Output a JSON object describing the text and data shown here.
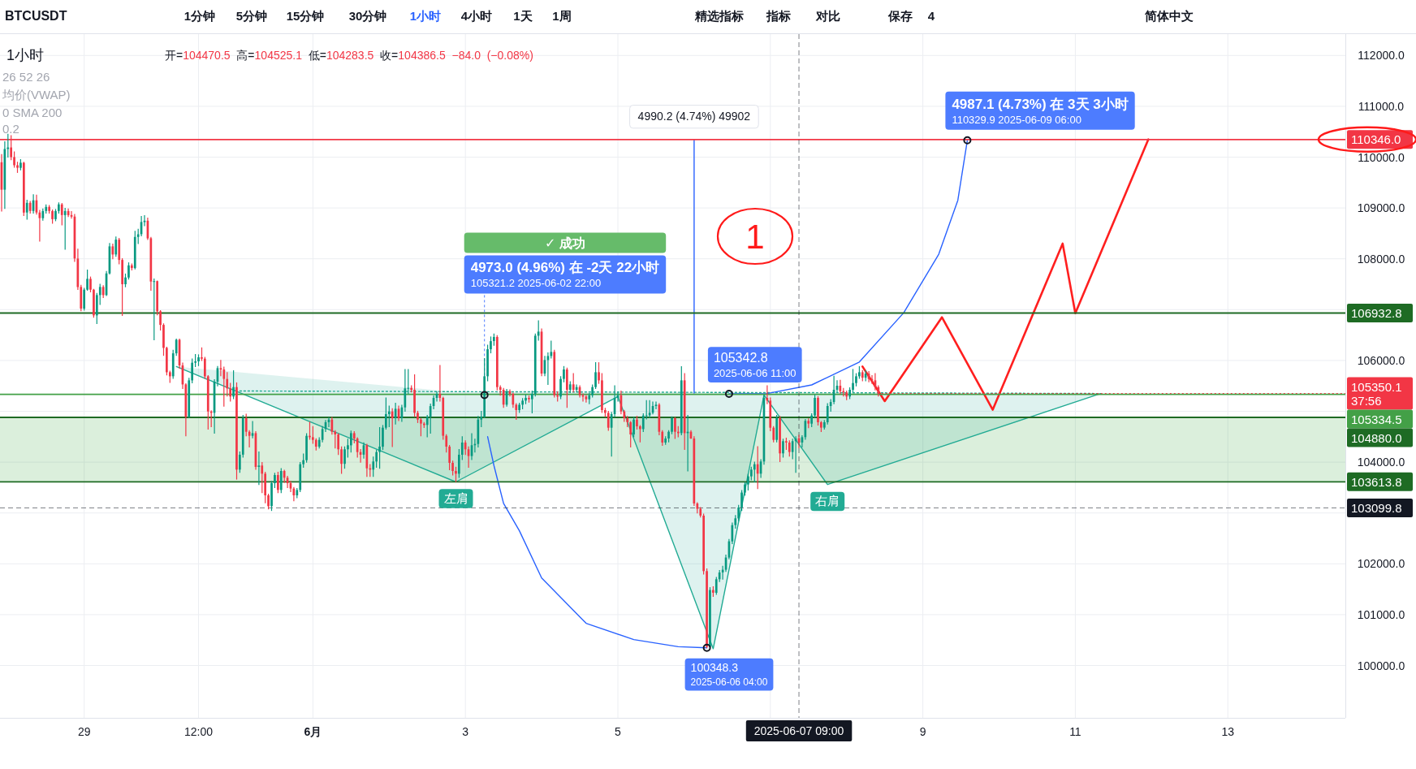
{
  "chart_data": {
    "type": "candlestick",
    "title": "BTCUSDT",
    "subtitle": "1小时",
    "xlim": [
      "2025-05-27T21:30",
      "2025-06-14T13:00"
    ],
    "ylim": [
      98970,
      112420
    ],
    "xticks": [
      {
        "value": "2025-05-29",
        "label": "29"
      },
      {
        "value": "2025-05-30T12:00",
        "label": "12:00"
      },
      {
        "value": "2025-06-01",
        "label": "6月"
      },
      {
        "value": "2025-06-03",
        "label": "3"
      },
      {
        "value": "2025-06-05",
        "label": "5"
      },
      {
        "value": "2025-06-07",
        "label": null
      },
      {
        "value": "2025-06-09",
        "label": "9"
      },
      {
        "value": "2025-06-11",
        "label": "11"
      },
      {
        "value": "2025-06-13",
        "label": "13"
      }
    ],
    "yticks": [
      {
        "value": 100000,
        "label": "100000.0"
      },
      {
        "value": 101000,
        "label": "101000.0"
      },
      {
        "value": 102000,
        "label": "102000.0"
      },
      {
        "value": 103000,
        "label": null
      },
      {
        "value": 104000,
        "label": "104000.0"
      },
      {
        "value": 105000,
        "label": null
      },
      {
        "value": 106000,
        "label": "106000.0"
      },
      {
        "value": 107000,
        "label": null
      },
      {
        "value": 108000,
        "label": "108000.0"
      },
      {
        "value": 109000,
        "label": "109000.0"
      },
      {
        "value": 110000,
        "label": "110000.0"
      },
      {
        "value": 111000,
        "label": "111000.0"
      },
      {
        "value": 112000,
        "label": "112000.0"
      }
    ],
    "grid": true,
    "x": [
      "2025-05-27T22:00",
      "2025-05-27T23:00",
      "2025-05-28T00:00",
      "2025-05-28T01:00",
      "2025-05-28T02:00",
      "2025-05-28T03:00",
      "2025-05-28T04:00",
      "2025-05-28T05:00",
      "2025-05-28T06:00",
      "2025-05-28T07:00",
      "2025-05-28T08:00",
      "2025-05-28T09:00",
      "2025-05-28T10:00",
      "2025-05-28T11:00",
      "2025-05-28T12:00",
      "2025-05-28T13:00",
      "2025-05-28T14:00",
      "2025-05-28T15:00",
      "2025-05-28T16:00",
      "2025-05-28T17:00",
      "2025-05-28T18:00",
      "2025-05-28T19:00",
      "2025-05-28T20:00",
      "2025-05-28T21:00",
      "2025-05-28T22:00",
      "2025-05-28T23:00",
      "2025-05-29T00:00",
      "2025-05-29T01:00",
      "2025-05-29T02:00",
      "2025-05-29T03:00",
      "2025-05-29T04:00",
      "2025-05-29T05:00",
      "2025-05-29T06:00",
      "2025-05-29T07:00",
      "2025-05-29T08:00",
      "2025-05-29T09:00",
      "2025-05-29T10:00",
      "2025-05-29T11:00",
      "2025-05-29T12:00",
      "2025-05-29T13:00",
      "2025-05-29T14:00",
      "2025-05-29T15:00",
      "2025-05-29T16:00",
      "2025-05-29T17:00",
      "2025-05-29T18:00",
      "2025-05-29T19:00",
      "2025-05-29T20:00",
      "2025-05-29T21:00",
      "2025-05-29T22:00",
      "2025-05-29T23:00",
      "2025-05-30T00:00",
      "2025-05-30T01:00",
      "2025-05-30T02:00",
      "2025-05-30T03:00",
      "2025-05-30T04:00",
      "2025-05-30T05:00",
      "2025-05-30T06:00",
      "2025-05-30T07:00",
      "2025-05-30T08:00",
      "2025-05-30T09:00",
      "2025-05-30T10:00",
      "2025-05-30T11:00",
      "2025-05-30T12:00",
      "2025-05-30T13:00",
      "2025-05-30T14:00",
      "2025-05-30T15:00",
      "2025-05-30T16:00",
      "2025-05-30T17:00",
      "2025-05-30T18:00",
      "2025-05-30T19:00",
      "2025-05-30T20:00",
      "2025-05-30T21:00",
      "2025-05-30T22:00",
      "2025-05-30T23:00",
      "2025-05-31T00:00",
      "2025-05-31T01:00",
      "2025-05-31T02:00",
      "2025-05-31T03:00",
      "2025-05-31T04:00",
      "2025-05-31T05:00",
      "2025-05-31T06:00",
      "2025-05-31T07:00",
      "2025-05-31T08:00",
      "2025-05-31T09:00",
      "2025-05-31T10:00",
      "2025-05-31T11:00",
      "2025-05-31T12:00",
      "2025-05-31T13:00",
      "2025-05-31T14:00",
      "2025-05-31T15:00",
      "2025-05-31T16:00",
      "2025-05-31T17:00",
      "2025-05-31T18:00",
      "2025-05-31T19:00",
      "2025-05-31T20:00",
      "2025-05-31T21:00",
      "2025-05-31T22:00",
      "2025-05-31T23:00",
      "2025-06-01T00:00",
      "2025-06-01T01:00",
      "2025-06-01T02:00",
      "2025-06-01T03:00",
      "2025-06-01T04:00",
      "2025-06-01T05:00",
      "2025-06-01T06:00",
      "2025-06-01T07:00",
      "2025-06-01T08:00",
      "2025-06-01T09:00",
      "2025-06-01T10:00",
      "2025-06-01T11:00",
      "2025-06-01T12:00",
      "2025-06-01T13:00",
      "2025-06-01T14:00",
      "2025-06-01T15:00",
      "2025-06-01T16:00",
      "2025-06-01T17:00",
      "2025-06-01T18:00",
      "2025-06-01T19:00",
      "2025-06-01T20:00",
      "2025-06-01T21:00",
      "2025-06-01T22:00",
      "2025-06-01T23:00",
      "2025-06-02T00:00",
      "2025-06-02T01:00",
      "2025-06-02T02:00",
      "2025-06-02T03:00",
      "2025-06-02T04:00",
      "2025-06-02T05:00",
      "2025-06-02T06:00",
      "2025-06-02T07:00",
      "2025-06-02T08:00",
      "2025-06-02T09:00",
      "2025-06-02T10:00",
      "2025-06-02T11:00",
      "2025-06-02T12:00",
      "2025-06-02T13:00",
      "2025-06-02T14:00",
      "2025-06-02T15:00",
      "2025-06-02T16:00",
      "2025-06-02T17:00",
      "2025-06-02T18:00",
      "2025-06-02T19:00",
      "2025-06-02T20:00",
      "2025-06-02T21:00",
      "2025-06-02T22:00",
      "2025-06-02T23:00",
      "2025-06-03T00:00",
      "2025-06-03T01:00",
      "2025-06-03T02:00",
      "2025-06-03T03:00",
      "2025-06-03T04:00",
      "2025-06-03T05:00",
      "2025-06-03T06:00",
      "2025-06-03T07:00",
      "2025-06-03T08:00",
      "2025-06-03T09:00",
      "2025-06-03T10:00",
      "2025-06-03T11:00",
      "2025-06-03T12:00",
      "2025-06-03T13:00",
      "2025-06-03T14:00",
      "2025-06-03T15:00",
      "2025-06-03T16:00",
      "2025-06-03T17:00",
      "2025-06-03T18:00",
      "2025-06-03T19:00",
      "2025-06-03T20:00",
      "2025-06-03T21:00",
      "2025-06-03T22:00",
      "2025-06-03T23:00",
      "2025-06-04T00:00",
      "2025-06-04T01:00",
      "2025-06-04T02:00",
      "2025-06-04T03:00",
      "2025-06-04T04:00",
      "2025-06-04T05:00",
      "2025-06-04T06:00",
      "2025-06-04T07:00",
      "2025-06-04T08:00",
      "2025-06-04T09:00",
      "2025-06-04T10:00",
      "2025-06-04T11:00",
      "2025-06-04T12:00",
      "2025-06-04T13:00",
      "2025-06-04T14:00",
      "2025-06-04T15:00",
      "2025-06-04T16:00",
      "2025-06-04T17:00",
      "2025-06-04T18:00",
      "2025-06-04T19:00",
      "2025-06-04T20:00",
      "2025-06-04T21:00",
      "2025-06-04T22:00",
      "2025-06-04T23:00",
      "2025-06-05T00:00",
      "2025-06-05T01:00",
      "2025-06-05T02:00",
      "2025-06-05T03:00",
      "2025-06-05T04:00",
      "2025-06-05T05:00",
      "2025-06-05T06:00",
      "2025-06-05T07:00",
      "2025-06-05T08:00",
      "2025-06-05T09:00",
      "2025-06-05T10:00",
      "2025-06-05T11:00",
      "2025-06-05T12:00",
      "2025-06-05T13:00",
      "2025-06-05T14:00",
      "2025-06-05T15:00",
      "2025-06-05T16:00",
      "2025-06-05T17:00",
      "2025-06-05T18:00",
      "2025-06-05T19:00",
      "2025-06-05T20:00",
      "2025-06-05T21:00",
      "2025-06-05T22:00",
      "2025-06-05T23:00",
      "2025-06-06T00:00",
      "2025-06-06T01:00",
      "2025-06-06T02:00",
      "2025-06-06T03:00",
      "2025-06-06T04:00",
      "2025-06-06T05:00",
      "2025-06-06T06:00",
      "2025-06-06T07:00",
      "2025-06-06T08:00",
      "2025-06-06T09:00",
      "2025-06-06T10:00",
      "2025-06-06T11:00",
      "2025-06-06T12:00",
      "2025-06-06T13:00",
      "2025-06-06T14:00",
      "2025-06-06T15:00",
      "2025-06-06T16:00",
      "2025-06-06T17:00",
      "2025-06-06T18:00",
      "2025-06-06T19:00",
      "2025-06-06T20:00",
      "2025-06-06T21:00",
      "2025-06-06T22:00",
      "2025-06-06T23:00",
      "2025-06-07T00:00",
      "2025-06-07T01:00",
      "2025-06-07T02:00",
      "2025-06-07T03:00",
      "2025-06-07T04:00",
      "2025-06-07T05:00",
      "2025-06-07T06:00",
      "2025-06-07T07:00",
      "2025-06-07T08:00",
      "2025-06-07T09:00",
      "2025-06-07T10:00",
      "2025-06-07T11:00",
      "2025-06-07T12:00",
      "2025-06-07T13:00",
      "2025-06-07T14:00",
      "2025-06-07T15:00",
      "2025-06-07T16:00",
      "2025-06-07T17:00",
      "2025-06-07T18:00",
      "2025-06-07T19:00",
      "2025-06-07T20:00",
      "2025-06-07T21:00",
      "2025-06-07T22:00",
      "2025-06-07T23:00",
      "2025-06-08T00:00",
      "2025-06-08T01:00",
      "2025-06-08T02:00",
      "2025-06-08T03:00",
      "2025-06-08T04:00",
      "2025-06-08T05:00",
      "2025-06-08T06:00",
      "2025-06-08T07:00",
      "2025-06-08T08:00",
      "2025-06-08T09:00",
      "2025-06-08T10:00"
    ],
    "ohlc": [
      [
        109900,
        110050,
        108940,
        109360
      ],
      [
        109360,
        110300,
        108990,
        110160
      ],
      [
        110160,
        110450,
        110000,
        110190
      ],
      [
        110190,
        110420,
        109950,
        110000
      ],
      [
        110000,
        110100,
        109800,
        109840
      ],
      [
        109840,
        109900,
        109700,
        109790
      ],
      [
        109790,
        109950,
        109750,
        109890
      ],
      [
        109890,
        109900,
        108850,
        108910
      ],
      [
        108910,
        109150,
        108780,
        109100
      ],
      [
        109100,
        109130,
        108900,
        108940
      ],
      [
        108940,
        109260,
        108900,
        109150
      ],
      [
        109150,
        109250,
        108880,
        108910
      ],
      [
        108910,
        108950,
        108350,
        108800
      ],
      [
        108800,
        108980,
        108760,
        108940
      ],
      [
        108940,
        109060,
        108900,
        109020
      ],
      [
        109020,
        109050,
        108900,
        108940
      ],
      [
        108940,
        108960,
        108700,
        108780
      ],
      [
        108780,
        108970,
        108750,
        108940
      ],
      [
        108940,
        109100,
        108900,
        109070
      ],
      [
        109070,
        109090,
        108670,
        108860
      ],
      [
        108860,
        108990,
        108190,
        108940
      ],
      [
        108940,
        108980,
        108830,
        108860
      ],
      [
        108860,
        108930,
        108800,
        108830
      ],
      [
        108830,
        108870,
        107950,
        108005
      ],
      [
        108005,
        108190,
        107400,
        107445
      ],
      [
        107445,
        107480,
        106980,
        107020
      ],
      [
        107020,
        107420,
        106990,
        107393
      ],
      [
        107393,
        107780,
        107380,
        107605
      ],
      [
        107605,
        107640,
        107350,
        107393
      ],
      [
        107393,
        107400,
        106850,
        106887
      ],
      [
        106887,
        107320,
        106727,
        107286
      ],
      [
        107286,
        107500,
        107100,
        107446
      ],
      [
        107446,
        107470,
        107240,
        107286
      ],
      [
        107286,
        107750,
        107280,
        107712
      ],
      [
        107712,
        108300,
        107700,
        108244
      ],
      [
        108244,
        108290,
        108000,
        108084
      ],
      [
        108084,
        108430,
        108050,
        108377
      ],
      [
        108377,
        108400,
        107900,
        107978
      ],
      [
        107978,
        108000,
        106886,
        107500
      ],
      [
        107500,
        107700,
        107450,
        107632
      ],
      [
        107632,
        107920,
        107600,
        107871
      ],
      [
        107871,
        107900,
        107780,
        107818
      ],
      [
        107818,
        108540,
        107800,
        108430
      ],
      [
        108430,
        108580,
        108300,
        108483
      ],
      [
        108483,
        108830,
        108450,
        108723
      ],
      [
        108723,
        108850,
        108650,
        108750
      ],
      [
        108750,
        108800,
        108380,
        108404
      ],
      [
        108404,
        108420,
        107380,
        107552
      ],
      [
        107552,
        107600,
        106407,
        107560
      ],
      [
        107560,
        107560,
        106900,
        106966
      ],
      [
        106966,
        106980,
        106600,
        106700
      ],
      [
        106700,
        106720,
        106100,
        106248
      ],
      [
        106248,
        106260,
        105716,
        105769
      ],
      [
        105769,
        105790,
        105570,
        105689
      ],
      [
        105689,
        106200,
        105650,
        106141
      ],
      [
        106141,
        106420,
        106100,
        106407
      ],
      [
        106407,
        106420,
        105850,
        105902
      ],
      [
        105902,
        105950,
        105450,
        105529
      ],
      [
        105529,
        105540,
        104518,
        104890
      ],
      [
        104890,
        105650,
        104880,
        105609
      ],
      [
        105609,
        106030,
        105560,
        105955
      ],
      [
        105955,
        106115,
        105880,
        105982
      ],
      [
        105982,
        106110,
        105900,
        106062
      ],
      [
        106062,
        106248,
        106000,
        106035
      ],
      [
        106035,
        106060,
        105650,
        105689
      ],
      [
        105689,
        105700,
        104650,
        104997
      ],
      [
        104997,
        105010,
        104700,
        104970
      ],
      [
        104970,
        105620,
        104570,
        105583
      ],
      [
        105583,
        105880,
        105500,
        105849
      ],
      [
        105849,
        106000,
        105700,
        105822
      ],
      [
        105822,
        105870,
        105100,
        105636
      ],
      [
        105636,
        105760,
        105300,
        105450
      ],
      [
        105450,
        105550,
        105200,
        105290
      ],
      [
        105290,
        105795,
        105250,
        105476
      ],
      [
        105476,
        105560,
        103666,
        103853
      ],
      [
        103853,
        104200,
        103800,
        104146
      ],
      [
        104146,
        104920,
        104100,
        104864
      ],
      [
        104864,
        104944,
        104520,
        104598
      ],
      [
        104598,
        104620,
        104300,
        104518
      ],
      [
        104518,
        104800,
        104480,
        104571
      ],
      [
        104571,
        104600,
        103860,
        103906
      ],
      [
        103906,
        104200,
        103560,
        103933
      ],
      [
        103933,
        103990,
        103400,
        103773
      ],
      [
        103773,
        103800,
        103200,
        103347
      ],
      [
        103347,
        103370,
        103080,
        103134
      ],
      [
        103134,
        103620,
        103050,
        103586
      ],
      [
        103586,
        103780,
        103500,
        103746
      ],
      [
        103746,
        103800,
        103400,
        103453
      ],
      [
        103453,
        103870,
        103400,
        103826
      ],
      [
        103826,
        103840,
        103600,
        103693
      ],
      [
        103693,
        103720,
        103500,
        103586
      ],
      [
        103586,
        103620,
        103420,
        103480
      ],
      [
        103480,
        103500,
        103240,
        103347
      ],
      [
        103347,
        103480,
        103300,
        103453
      ],
      [
        103453,
        103990,
        103420,
        103959
      ],
      [
        103959,
        104160,
        103900,
        104039
      ],
      [
        104039,
        104560,
        104000,
        104518
      ],
      [
        104518,
        104784,
        104450,
        104491
      ],
      [
        104491,
        104700,
        104370,
        104438
      ],
      [
        104438,
        104460,
        104240,
        104305
      ],
      [
        104305,
        104480,
        104280,
        104438
      ],
      [
        104438,
        104700,
        104400,
        104651
      ],
      [
        104651,
        104820,
        104600,
        104784
      ],
      [
        104784,
        104870,
        104700,
        104837
      ],
      [
        104837,
        104880,
        104550,
        104598
      ],
      [
        104598,
        104620,
        104279,
        104545
      ],
      [
        104545,
        104560,
        104150,
        104252
      ],
      [
        104252,
        104300,
        103780,
        103966
      ],
      [
        103966,
        104300,
        103880,
        104252
      ],
      [
        104252,
        104450,
        104100,
        104332
      ],
      [
        104332,
        104610,
        104200,
        104571
      ],
      [
        104571,
        104600,
        104380,
        104465
      ],
      [
        104465,
        104480,
        104100,
        104199
      ],
      [
        104199,
        104250,
        104000,
        104146
      ],
      [
        104146,
        104380,
        104080,
        104332
      ],
      [
        104332,
        104350,
        103720,
        103879
      ],
      [
        103879,
        103950,
        103720,
        103853
      ],
      [
        103853,
        104100,
        103720,
        104013
      ],
      [
        104013,
        104230,
        103900,
        104199
      ],
      [
        104199,
        104678,
        103880,
        104305
      ],
      [
        104305,
        104720,
        104250,
        104678
      ],
      [
        104678,
        105263,
        104650,
        104944
      ],
      [
        104944,
        105100,
        104700,
        104997
      ],
      [
        104997,
        105050,
        104305,
        104864
      ],
      [
        104864,
        105160,
        104750,
        105050
      ],
      [
        105050,
        105100,
        104820,
        104864
      ],
      [
        104864,
        105120,
        104800,
        105077
      ],
      [
        105077,
        105822,
        105000,
        105450
      ],
      [
        105450,
        105820,
        105350,
        105460
      ],
      [
        105460,
        105500,
        105380,
        105423
      ],
      [
        105423,
        105716,
        104900,
        104970
      ],
      [
        104970,
        105000,
        104780,
        104837
      ],
      [
        104837,
        104860,
        104518,
        104758
      ],
      [
        104758,
        104780,
        104680,
        104731
      ],
      [
        104731,
        104920,
        104500,
        104891
      ],
      [
        104891,
        105140,
        104570,
        105103
      ],
      [
        105103,
        105300,
        105050,
        105263
      ],
      [
        105263,
        105380,
        105200,
        105343
      ],
      [
        105343,
        105902,
        105200,
        105263
      ],
      [
        105263,
        105280,
        104450,
        104518
      ],
      [
        104518,
        104540,
        104200,
        104305
      ],
      [
        104305,
        104330,
        103850,
        103986
      ],
      [
        103986,
        104020,
        103750,
        103826
      ],
      [
        103826,
        103900,
        103613.8,
        103773
      ],
      [
        103773,
        104250,
        103700,
        104146
      ],
      [
        104146,
        104500,
        104050,
        104385
      ],
      [
        104385,
        104420,
        104150,
        104252
      ],
      [
        104252,
        104300,
        103900,
        104119
      ],
      [
        104119,
        104560,
        104050,
        104332
      ],
      [
        104332,
        104450,
        104200,
        104358
      ],
      [
        104358,
        104900,
        104300,
        104837
      ],
      [
        104837,
        105000,
        104700,
        104891
      ],
      [
        104891,
        106035,
        104880,
        105689
      ],
      [
        105689,
        106300,
        105600,
        106221
      ],
      [
        106221,
        106461,
        106150,
        106381
      ],
      [
        106381,
        106520,
        106300,
        106461
      ],
      [
        106461,
        106488,
        105420,
        105476
      ],
      [
        105476,
        105500,
        105316,
        105423
      ],
      [
        105423,
        105450,
        105077,
        105130
      ],
      [
        105130,
        105430,
        105100,
        105396
      ],
      [
        105396,
        105420,
        105300,
        105343
      ],
      [
        105343,
        105360,
        105077,
        105130
      ],
      [
        105130,
        105150,
        104840,
        105024
      ],
      [
        105024,
        105160,
        104980,
        105130
      ],
      [
        105130,
        105250,
        105050,
        105210
      ],
      [
        105210,
        105320,
        105150,
        105263
      ],
      [
        105263,
        105300,
        105180,
        105237
      ],
      [
        105237,
        105400,
        104970,
        105343
      ],
      [
        105343,
        106520,
        105300,
        106487
      ],
      [
        106487,
        106780,
        106400,
        106567
      ],
      [
        106567,
        106620,
        105700,
        105742
      ],
      [
        105742,
        106080,
        105700,
        106008
      ],
      [
        106008,
        106150,
        105530,
        106088
      ],
      [
        106088,
        106380,
        106050,
        106168
      ],
      [
        106168,
        106200,
        105280,
        105317
      ],
      [
        105317,
        105380,
        105200,
        105290
      ],
      [
        105290,
        105680,
        105250,
        105636
      ],
      [
        105636,
        105880,
        105580,
        105822
      ],
      [
        105822,
        105850,
        105077,
        105423
      ],
      [
        105423,
        105580,
        105370,
        105530
      ],
      [
        105530,
        105740,
        105380,
        105423
      ],
      [
        105423,
        105520,
        105380,
        105476
      ],
      [
        105476,
        105500,
        105280,
        105317
      ],
      [
        105317,
        105340,
        105200,
        105290
      ],
      [
        105290,
        105310,
        105180,
        105237
      ],
      [
        105237,
        105350,
        105150,
        105317
      ],
      [
        105317,
        105520,
        105280,
        105476
      ],
      [
        105476,
        105955,
        105450,
        105769
      ],
      [
        105769,
        105955,
        105550,
        105609
      ],
      [
        105609,
        105740,
        104980,
        105024
      ],
      [
        105024,
        105060,
        104900,
        104970
      ],
      [
        104970,
        105000,
        104625,
        104678
      ],
      [
        104678,
        104980,
        104120,
        104944
      ],
      [
        104944,
        105500,
        104900,
        105263
      ],
      [
        105263,
        105380,
        105200,
        105317
      ],
      [
        105317,
        105400,
        104950,
        104997
      ],
      [
        104997,
        105020,
        104800,
        104864
      ],
      [
        104864,
        104900,
        104700,
        104784
      ],
      [
        104784,
        104800,
        104300,
        104545
      ],
      [
        104545,
        104880,
        104500,
        104838
      ],
      [
        104838,
        104900,
        104650,
        104705
      ],
      [
        104705,
        104720,
        104400,
        104651
      ],
      [
        104651,
        104950,
        104600,
        104917
      ],
      [
        104917,
        105210,
        104850,
        104920
      ],
      [
        104920,
        105210,
        104880,
        104971
      ],
      [
        104971,
        105180,
        104950,
        105104
      ],
      [
        105104,
        105180,
        105050,
        105130
      ],
      [
        105130,
        105150,
        104540,
        104598
      ],
      [
        104598,
        104620,
        104330,
        104385
      ],
      [
        104385,
        104500,
        104350,
        104465
      ],
      [
        104465,
        104620,
        104400,
        104598
      ],
      [
        104598,
        104890,
        104560,
        104864
      ],
      [
        104864,
        104880,
        104465,
        104598
      ],
      [
        104598,
        104700,
        104500,
        104571
      ],
      [
        104571,
        105875,
        104540,
        105609
      ],
      [
        105609,
        105742,
        104252,
        104571
      ],
      [
        104571,
        104918,
        103826,
        104598
      ],
      [
        104598,
        104620,
        104465,
        104465
      ],
      [
        104465,
        104500,
        103150,
        103187
      ],
      [
        103187,
        103200,
        103000,
        103081
      ],
      [
        103081,
        103108,
        102920,
        102948
      ],
      [
        102948,
        102980,
        101800,
        101857
      ],
      [
        101857,
        101900,
        100348.3,
        100366
      ],
      [
        100366,
        101530,
        100360,
        101484
      ],
      [
        101484,
        101550,
        101360,
        101431
      ],
      [
        101431,
        101730,
        101400,
        101697
      ],
      [
        101697,
        101870,
        101650,
        101830
      ],
      [
        101830,
        101950,
        101700,
        101883
      ],
      [
        101883,
        102170,
        101850,
        102123
      ],
      [
        102123,
        102480,
        102100,
        102442
      ],
      [
        102442,
        102800,
        102400,
        102761
      ],
      [
        102761,
        102950,
        102700,
        102894
      ],
      [
        102894,
        103150,
        102850,
        103108
      ],
      [
        103108,
        103440,
        103050,
        103401
      ],
      [
        103401,
        103600,
        103350,
        103561
      ],
      [
        103561,
        103760,
        103450,
        103720
      ],
      [
        103720,
        103900,
        103650,
        103853
      ],
      [
        103853,
        104000,
        103610,
        103959
      ],
      [
        103959,
        104305,
        103480,
        103773
      ],
      [
        103773,
        104050,
        103700,
        104013
      ],
      [
        104013,
        105316,
        103960,
        105263
      ],
      [
        105263,
        105500,
        105150,
        105210
      ],
      [
        105210,
        105263,
        104620,
        104678
      ],
      [
        104678,
        104700,
        104400,
        104438
      ],
      [
        104438,
        104917,
        104400,
        104864
      ],
      [
        104864,
        104900,
        104013,
        104172
      ],
      [
        104172,
        104450,
        104100,
        104412
      ],
      [
        104412,
        104470,
        104250,
        104385
      ],
      [
        104385,
        104420,
        104120,
        104199
      ],
      [
        104199,
        104450,
        104066,
        104412
      ],
      [
        104412,
        104500,
        103800,
        104465
      ],
      [
        104470.5,
        104525.1,
        104283.5,
        104386.5
      ],
      [
        104386.5,
        104520,
        104300,
        104491
      ],
      [
        104491,
        104838,
        104450,
        104811
      ],
      [
        104811,
        104850,
        104678,
        104758
      ],
      [
        104758,
        104950,
        104700,
        104917
      ],
      [
        104917,
        105320,
        104880,
        105263
      ],
      [
        105263,
        105290,
        104730,
        104784
      ],
      [
        104784,
        104800,
        104600,
        104678
      ],
      [
        104678,
        104820,
        104650,
        104784
      ],
      [
        104784,
        105150,
        104750,
        105104
      ],
      [
        105104,
        105230,
        105000,
        105183
      ],
      [
        105183,
        105690,
        105150,
        105423
      ],
      [
        105423,
        105600,
        105380,
        105503
      ],
      [
        105503,
        105610,
        105350,
        105396
      ],
      [
        105396,
        105450,
        105300,
        105370
      ],
      [
        105370,
        105400,
        105230,
        105290
      ],
      [
        105290,
        105460,
        105250,
        105423
      ],
      [
        105423,
        105822,
        105380,
        105556
      ],
      [
        105556,
        105740,
        105500,
        105689
      ],
      [
        105689,
        105875,
        105650,
        105769
      ],
      [
        105769,
        105800,
        105600,
        105662
      ],
      [
        105662,
        105800,
        105600,
        105742
      ],
      [
        105742,
        105780,
        105580,
        105636
      ],
      [
        105636,
        105700,
        105550,
        105609
      ],
      [
        105609,
        105742,
        105420,
        105476
      ],
      [
        105476,
        105500,
        105300,
        105350.1
      ]
    ],
    "series": [
      {
        "type": "line",
        "color": "#22ab94",
        "x": [
          "2025-05-30T05:00",
          "2025-06-02T21:00",
          "2025-06-05T00:00",
          "2025-06-06T06:00",
          "2025-06-06T22:00",
          "2025-06-07T18:00",
          "2025-06-11T08:00"
        ],
        "values": [
          105880,
          103610,
          105290,
          100330,
          105320,
          103560,
          105350
        ],
        "lower": [
          105880,
          103610,
          105290,
          100330,
          105320,
          103560,
          105350
        ],
        "upper": [
          105880,
          105380,
          105370,
          105370,
          105360,
          105360,
          105350
        ]
      },
      {
        "type": "line",
        "color": "#22ab94",
        "line_style": "dotted",
        "x": [
          "2025-05-31T01:00",
          "2025-06-11T08:00"
        ],
        "values": [
          105400,
          105350
        ]
      },
      {
        "type": "line",
        "color": "#2962ff",
        "x": [
          "2025-06-03T07:00",
          "2025-06-03T09:00",
          "2025-06-03T12:00",
          "2025-06-03T17:00",
          "2025-06-04T00:00",
          "2025-06-04T14:00",
          "2025-06-05T05:00",
          "2025-06-05T19:00",
          "2025-06-06T04:00"
        ],
        "values": [
          104500,
          103930,
          103190,
          102650,
          101720,
          100830,
          100510,
          100370,
          100348.3
        ]
      },
      {
        "type": "line",
        "color": "#2962ff",
        "x": [
          "2025-06-06T11:00",
          "2025-06-06T23:00",
          "2025-06-07T13:00",
          "2025-06-08T04:00",
          "2025-06-08T18:00",
          "2025-06-09T05:00",
          "2025-06-09T11:00",
          "2025-06-09T14:00"
        ],
        "values": [
          105342.8,
          105350,
          105520,
          105970,
          106940,
          108090,
          109150,
          110329.9
        ]
      },
      {
        "type": "line",
        "color": "#2962ff",
        "x": [
          "2025-06-06T00:00",
          "2025-06-06T00:00"
        ],
        "values": [
          105360,
          110346
        ]
      },
      {
        "type": "line",
        "color": "#ff1f1f",
        "x": [
          "2025-06-08T05:00",
          "2025-06-08T12:00",
          "2025-06-09T06:00",
          "2025-06-09T22:00",
          "2025-06-10T20:00",
          "2025-06-11T00:00",
          "2025-06-11T23:00"
        ],
        "values": [
          105880,
          105200,
          106850,
          105030,
          108300,
          106930,
          110350
        ]
      }
    ],
    "bands": [
      {
        "axis": "y",
        "from": 103613.8,
        "to": 104880.0,
        "color": "#4caf50"
      }
    ],
    "ref_lines": [
      {
        "axis": "y",
        "value": 110346.0,
        "label": "110346.0",
        "color": "#f23645"
      },
      {
        "axis": "y",
        "value": 106932.8,
        "label": "106932.8",
        "color": "#1e6b24"
      },
      {
        "axis": "y",
        "value": 105334.5,
        "label": "105334.5",
        "color": "#43a047"
      },
      {
        "axis": "y",
        "value": 104880.0,
        "label": "104880.0",
        "color": "#1e6b24"
      },
      {
        "axis": "y",
        "value": 103613.8,
        "label": "103613.8",
        "color": "#1e6b24"
      },
      {
        "axis": "y",
        "value": 103099.8,
        "label": "103099.8",
        "color": "#131722",
        "line_style": "dashed"
      },
      {
        "axis": "x",
        "value": "2025-06-07T09:00",
        "label": "2025-06-07 09:00",
        "color": "#131722",
        "line_style": "dashed"
      }
    ],
    "annotations": [
      "1分钟",
      "5分钟",
      "15分钟",
      "30分钟",
      "1小时",
      "4小时",
      "1天",
      "1周",
      "精选指标",
      "指标",
      "对比",
      "保存",
      "4",
      "简体中文",
      "开=104470.5 高=104525.1 低=104283.5 收=104386.5 −84.0 (−0.08%)",
      "26 52 26",
      "均价(VWAP)",
      "0 SMA 200",
      "0.2",
      "1",
      "✓ 成功",
      {
        "text": "4973.0 (4.96%) 在 -2天 22小时\n105321.2 2025-06-02 22:00",
        "x": "2025-06-03T06:00",
        "y": 105321.2
      },
      {
        "text": "100348.3\n2025-06-06 04:00",
        "x": "2025-06-06T04:00",
        "y": 100348.3
      },
      {
        "text": "105342.8\n2025-06-06 11:00",
        "x": "2025-06-06T11:00",
        "y": 105342.8
      },
      {
        "text": "4987.1 (4.73%) 在 3天 3小时\n110329.9 2025-06-09 06:00",
        "x": "2025-06-09T14:00",
        "y": 110329.9
      },
      {
        "text": "4990.2 (4.74%) 49902",
        "x": "2025-06-06T00:00",
        "y": 110346
      },
      {
        "text": "左肩",
        "x": "2025-06-02T21:00",
        "y": 103613.8
      },
      {
        "text": "右肩",
        "x": "2025-06-07T18:00",
        "y": 103560
      },
      {
        "text": "105350.1\n37:56",
        "x": "2025-06-08T10:00",
        "y": 105350.1
      }
    ]
  }
}
